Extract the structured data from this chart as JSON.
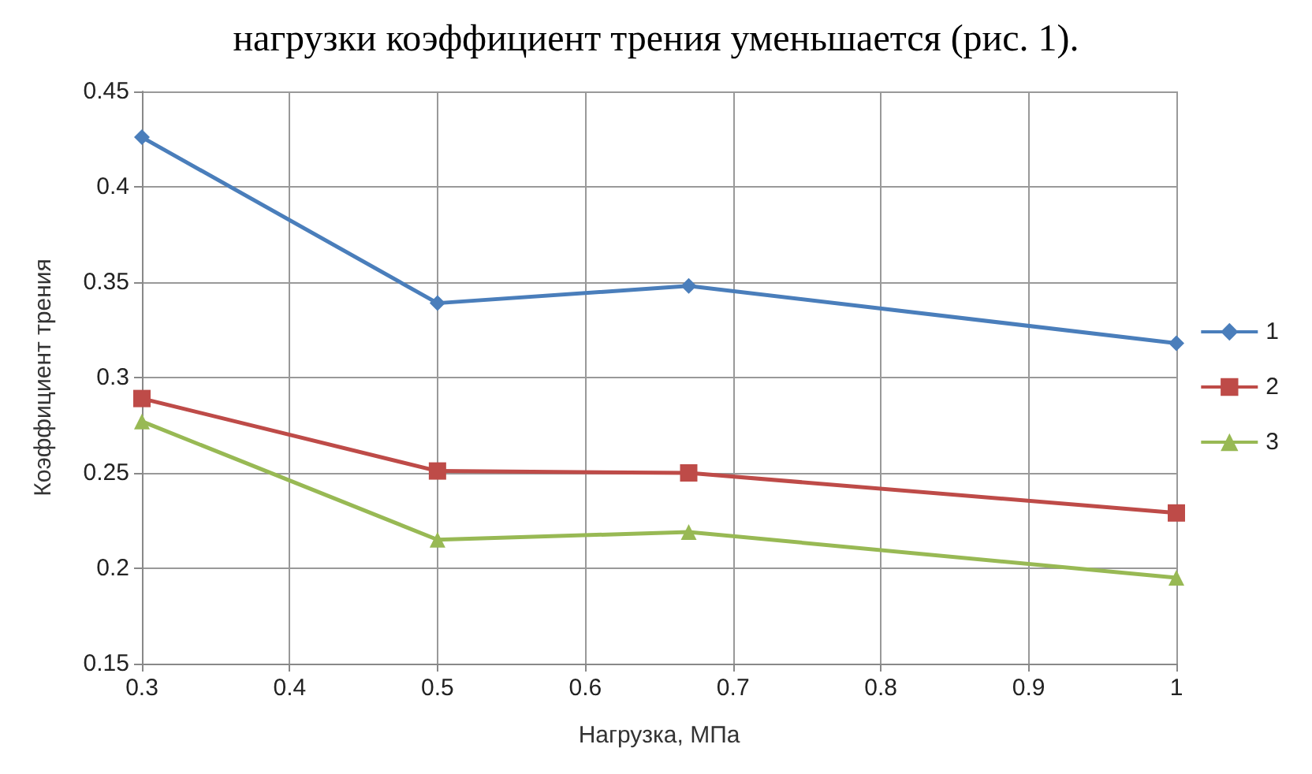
{
  "chart_data": {
    "type": "line",
    "xlabel": "Нагрузка, МПа",
    "ylabel": "Коэффициент трения",
    "annotations": [
      "нагрузки коэффициент трения уменьшается (рис. 1)."
    ],
    "x": [
      0.3,
      0.5,
      0.67,
      1
    ],
    "series": [
      {
        "name": "1",
        "color": "#4a7ebb",
        "marker": "diamond",
        "values": [
          0.426,
          0.339,
          0.348,
          0.318
        ]
      },
      {
        "name": "2",
        "color": "#be4b48",
        "marker": "square",
        "values": [
          0.289,
          0.251,
          0.25,
          0.229
        ]
      },
      {
        "name": "3",
        "color": "#98b954",
        "marker": "triangle",
        "values": [
          0.277,
          0.215,
          0.219,
          0.195
        ]
      }
    ],
    "xlim": [
      0.3,
      1
    ],
    "xticks": [
      0.3,
      0.4,
      0.5,
      0.6,
      0.7,
      0.8,
      0.9,
      1
    ],
    "ylim": [
      0.15,
      0.45
    ],
    "yticks": [
      0.15,
      0.2,
      0.25,
      0.3,
      0.35,
      0.4,
      0.45
    ],
    "grid": true,
    "legend": "right"
  }
}
